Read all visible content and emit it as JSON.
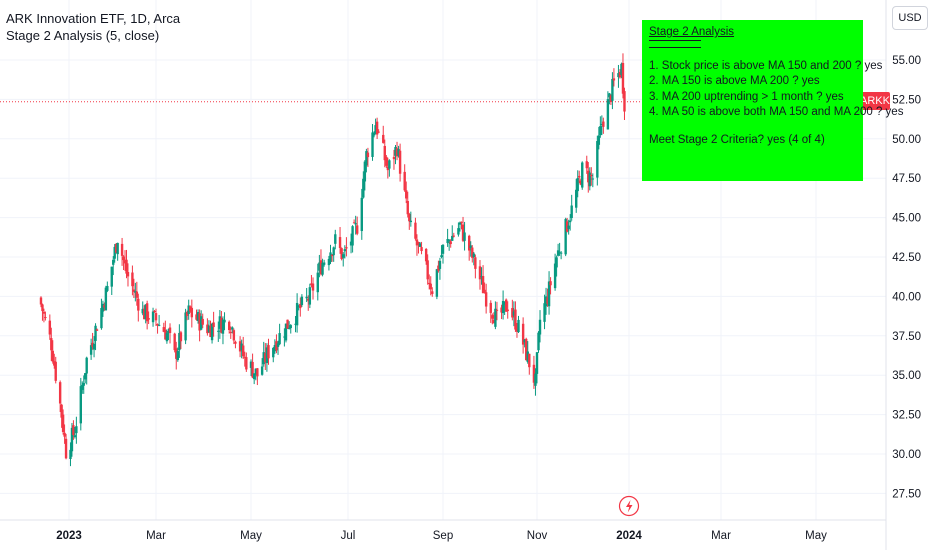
{
  "legend": {
    "title": "ARK Innovation ETF, 1D, Arca",
    "indicator": "Stage 2 Analysis (5, close)"
  },
  "currency_button": "USD",
  "ticker_tag": "ARKK",
  "note": {
    "title": "Stage 2 Analysis",
    "lines": [
      "1. Stock price is above MA 150 and 200 ? yes",
      "2. MA 150 is above MA 200 ? yes",
      "3. MA 200 uptrending > 1 month ? yes",
      "4. MA 50 is above both MA 150 and MA 200 ? yes"
    ],
    "result": "Meet Stage 2 Criteria? yes (4 of 4)"
  },
  "colors": {
    "up": "#089981",
    "down": "#f23645",
    "note_bg": "#00ff00",
    "grid": "#f0f3fa",
    "axis_text": "#131722",
    "event_icon": "#f23645"
  },
  "icons": {
    "event": "lightning-icon"
  },
  "chart_data": {
    "type": "candlestick",
    "title": "ARK Innovation ETF, 1D, Arca",
    "x_ticks": [
      "2023",
      "Mar",
      "May",
      "Jul",
      "Sep",
      "Nov",
      "2024",
      "Mar",
      "May"
    ],
    "y_ticks": [
      "27.50",
      "30.00",
      "32.50",
      "35.00",
      "37.50",
      "40.00",
      "42.50",
      "45.00",
      "47.50",
      "50.00",
      "52.50",
      "55.00"
    ],
    "ylim": [
      25.5,
      56.8
    ],
    "last_price": 52.35,
    "grid": true,
    "legend_position": "top-left",
    "ohlc_waypoints": [
      {
        "date": "2022-12-13",
        "close": 39.5
      },
      {
        "date": "2022-12-20",
        "close": 37.0
      },
      {
        "date": "2022-12-27",
        "close": 32.5
      },
      {
        "date": "2022-12-30",
        "close": 30.2
      },
      {
        "date": "2023-01-05",
        "close": 31.5
      },
      {
        "date": "2023-01-13",
        "close": 36.0
      },
      {
        "date": "2023-01-27",
        "close": 40.5
      },
      {
        "date": "2023-02-03",
        "close": 43.8
      },
      {
        "date": "2023-02-09",
        "close": 41.5
      },
      {
        "date": "2023-02-20",
        "close": 39.0
      },
      {
        "date": "2023-03-01",
        "close": 38.5
      },
      {
        "date": "2023-03-09",
        "close": 37.5
      },
      {
        "date": "2023-03-13",
        "close": 36.2
      },
      {
        "date": "2023-03-22",
        "close": 39.0
      },
      {
        "date": "2023-04-03",
        "close": 38.0
      },
      {
        "date": "2023-04-17",
        "close": 38.5
      },
      {
        "date": "2023-04-27",
        "close": 36.0
      },
      {
        "date": "2023-05-05",
        "close": 35.0
      },
      {
        "date": "2023-05-12",
        "close": 36.5
      },
      {
        "date": "2023-05-26",
        "close": 38.5
      },
      {
        "date": "2023-06-07",
        "close": 40.0
      },
      {
        "date": "2023-06-14",
        "close": 42.0
      },
      {
        "date": "2023-06-23",
        "close": 43.5
      },
      {
        "date": "2023-06-28",
        "close": 42.5
      },
      {
        "date": "2023-07-07",
        "close": 44.5
      },
      {
        "date": "2023-07-13",
        "close": 49.0
      },
      {
        "date": "2023-07-19",
        "close": 51.0
      },
      {
        "date": "2023-07-27",
        "close": 48.0
      },
      {
        "date": "2023-08-02",
        "close": 49.5
      },
      {
        "date": "2023-08-10",
        "close": 44.5
      },
      {
        "date": "2023-08-18",
        "close": 42.5
      },
      {
        "date": "2023-08-25",
        "close": 40.5
      },
      {
        "date": "2023-09-01",
        "close": 43.0
      },
      {
        "date": "2023-09-12",
        "close": 44.5
      },
      {
        "date": "2023-09-20",
        "close": 42.5
      },
      {
        "date": "2023-09-29",
        "close": 40.0
      },
      {
        "date": "2023-10-06",
        "close": 38.5
      },
      {
        "date": "2023-10-13",
        "close": 39.5
      },
      {
        "date": "2023-10-20",
        "close": 38.0
      },
      {
        "date": "2023-10-31",
        "close": 34.5
      },
      {
        "date": "2023-11-03",
        "close": 38.5
      },
      {
        "date": "2023-11-08",
        "close": 40.0
      },
      {
        "date": "2023-11-14",
        "close": 42.5
      },
      {
        "date": "2023-11-24",
        "close": 45.5
      },
      {
        "date": "2023-12-01",
        "close": 48.0
      },
      {
        "date": "2023-12-08",
        "close": 47.5
      },
      {
        "date": "2023-12-14",
        "close": 51.0
      },
      {
        "date": "2023-12-19",
        "close": 52.5
      },
      {
        "date": "2023-12-22",
        "close": 53.5
      },
      {
        "date": "2023-12-27",
        "close": 54.5
      },
      {
        "date": "2023-12-29",
        "close": 52.35
      }
    ]
  }
}
